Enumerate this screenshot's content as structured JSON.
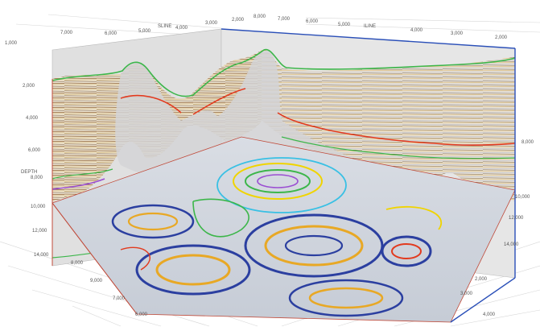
{
  "axes": {
    "top_far_ticks": [
      "7,000",
      "6,000",
      "5,000",
      "4,000",
      "3,000",
      "2,000"
    ],
    "top_far_titles": [
      "SLINE",
      "ILINE"
    ],
    "top_right_ticks": [
      "8,000",
      "7,000",
      "6,000",
      "5,000",
      "4,000",
      "3,000",
      "2,000"
    ],
    "left_depth_ticks": [
      "2,000",
      "4,000",
      "6,000",
      "8,000",
      "10,000",
      "12,000",
      "14,000"
    ],
    "left_depth_title": "DEPTH",
    "right_depth_ticks": [
      "8,000",
      "10,000",
      "12,000",
      "14,000"
    ],
    "top_left_corner_tick": "1,000",
    "bottom_left_ticks": [
      "8,000",
      "9,000",
      "7,000",
      "6,000"
    ],
    "bottom_right_ticks": [
      "2,000",
      "3,000",
      "4,000"
    ]
  },
  "horizons": {
    "colors": [
      "#3cb64a",
      "#e23a1e",
      "#9b4fd2",
      "#f0d400",
      "#39c0e4",
      "#2b3fa0"
    ],
    "names": [
      "green-horizon",
      "red-horizon",
      "purple-horizon",
      "yellow-horizon",
      "cyan-horizon",
      "blue-horizon"
    ]
  },
  "frame": {
    "accent_color": "#2a4fb8",
    "edge_color": "#c04a3a"
  }
}
